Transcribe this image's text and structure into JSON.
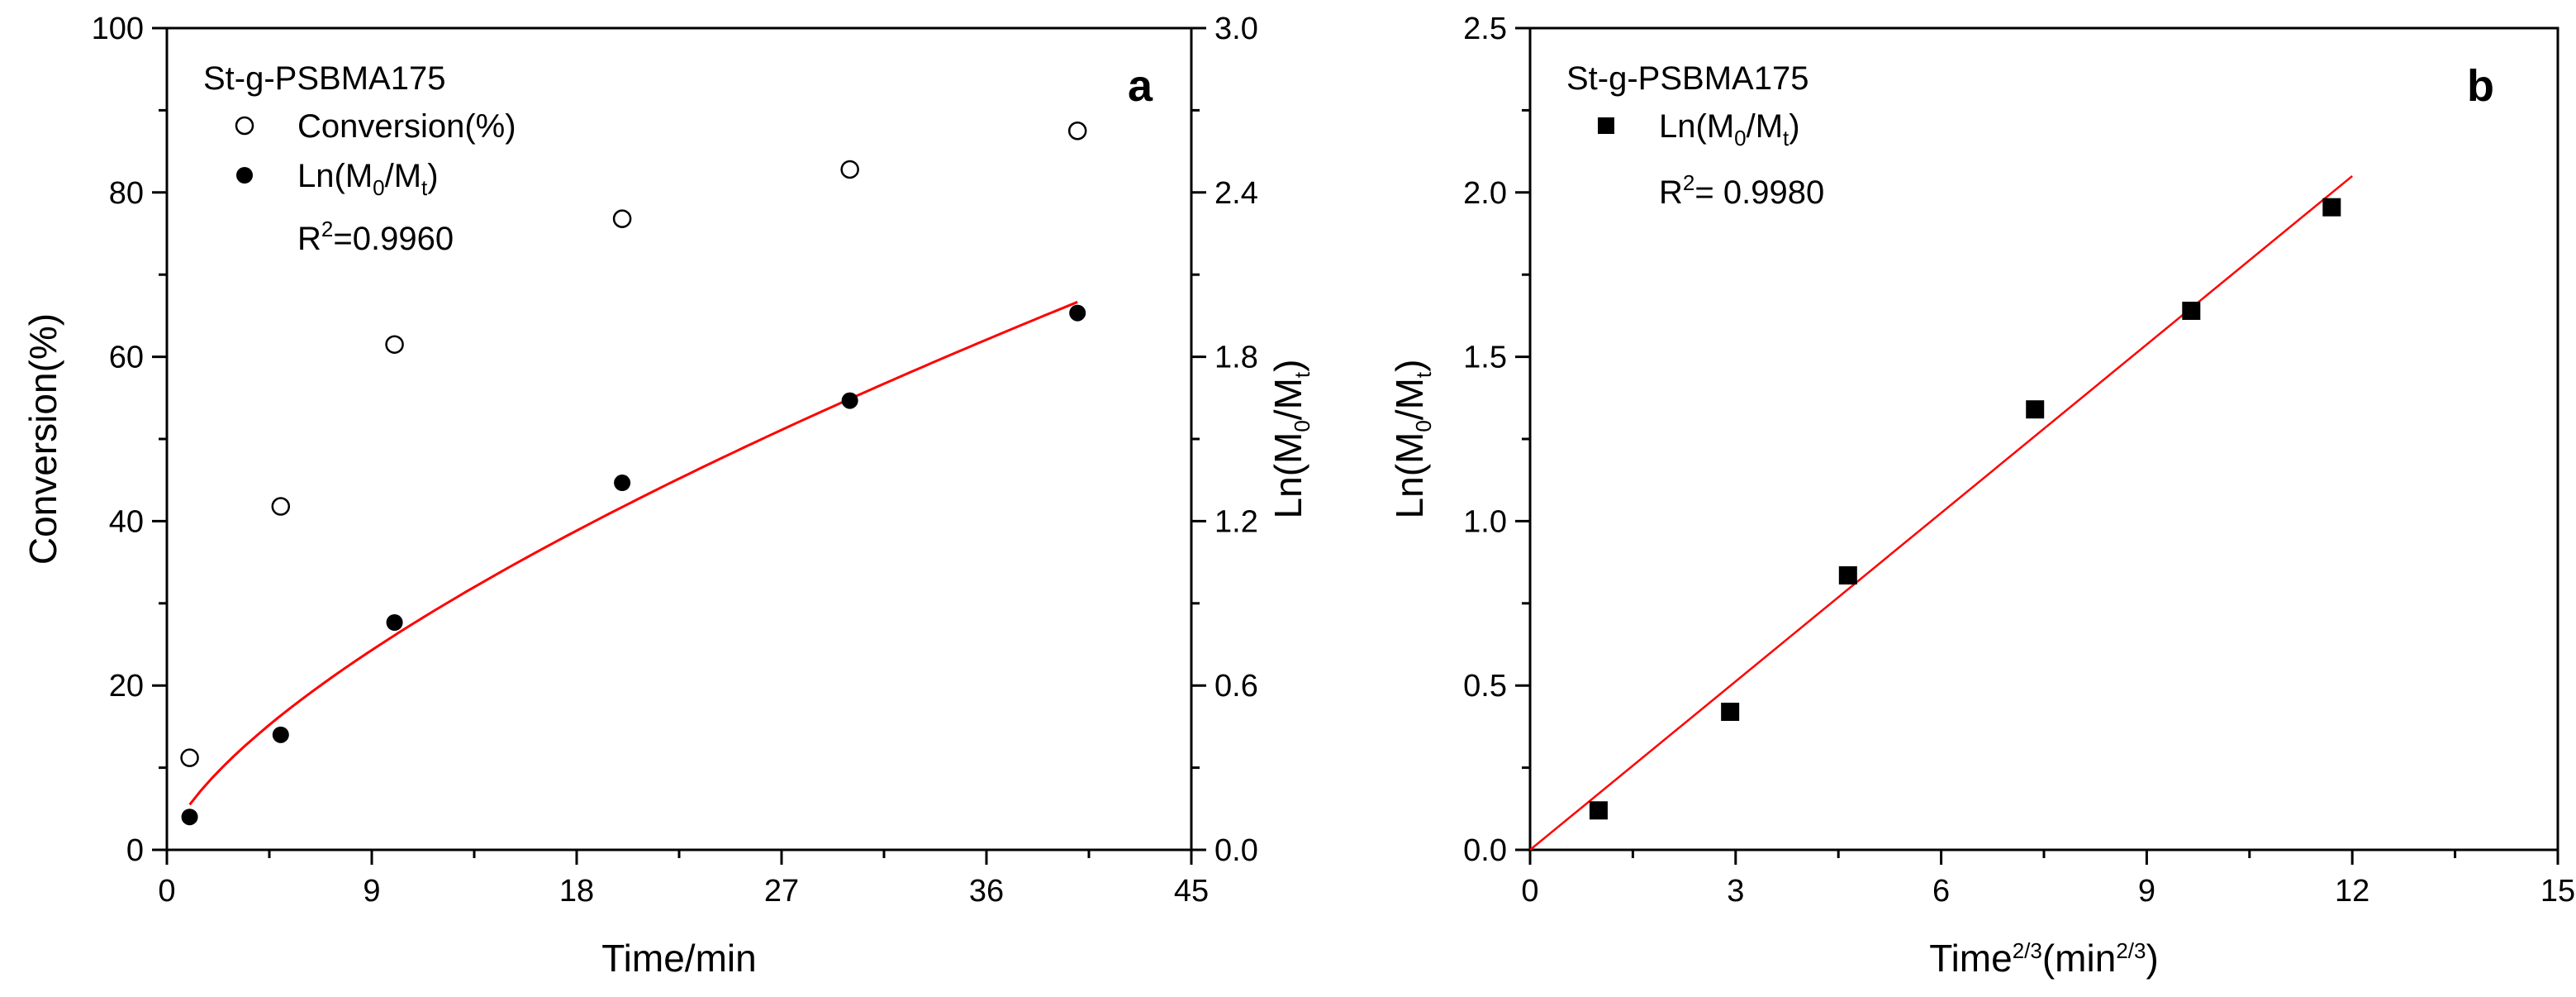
{
  "chart_data": [
    {
      "panel": "a",
      "type": "scatter",
      "legend_title": "St-g-PSBMA175",
      "legend_position": "top-left",
      "x": [
        1,
        5,
        10,
        20,
        30,
        40
      ],
      "xlabel": "Time/min",
      "xlim": [
        0,
        45
      ],
      "xticks": [
        0,
        9,
        18,
        27,
        36,
        45
      ],
      "ylabel_left": "Conversion(%)",
      "ylim_left": [
        0,
        100
      ],
      "yticks_left": [
        0,
        20,
        40,
        60,
        80,
        100
      ],
      "ylabel_right": {
        "base": "Ln(M",
        "sub1": "0",
        "mid": "/M",
        "sub2": "t",
        "end": ")"
      },
      "ylim_right": [
        0,
        3.0
      ],
      "yticks_right": [
        "0.0",
        "0.6",
        "1.2",
        "1.8",
        "2.4",
        "3.0"
      ],
      "series": [
        {
          "name": "Conversion(%)",
          "marker": "open-circle",
          "axis": "left",
          "values": [
            11.2,
            41.8,
            61.5,
            76.8,
            82.8,
            87.5
          ]
        },
        {
          "name": {
            "base": "Ln(M",
            "sub1": "0",
            "mid": "/M",
            "sub2": "t",
            "end": ")"
          },
          "marker": "filled-circle",
          "axis": "right",
          "values": [
            0.12,
            0.42,
            0.83,
            1.34,
            1.64,
            1.96
          ]
        }
      ],
      "fit": {
        "type": "power",
        "color": "#ff0000",
        "x_range": [
          1,
          40
        ],
        "y_start": 0.165,
        "y_end": 2.0,
        "r2_label": "0.9960"
      }
    },
    {
      "panel": "b",
      "type": "scatter",
      "legend_title": "St-g-PSBMA175",
      "legend_position": "top-left",
      "x": [
        1.0,
        2.92,
        4.64,
        7.37,
        9.65,
        11.7
      ],
      "xlabel": {
        "base": "Time",
        "sup": "2/3",
        "mid": "(min",
        "sup2": "2/3",
        "end": ")"
      },
      "xlim": [
        0,
        15
      ],
      "xticks": [
        0,
        3,
        6,
        9,
        12,
        15
      ],
      "ylabel": {
        "base": "Ln(M",
        "sub1": "0",
        "mid": "/M",
        "sub2": "t",
        "end": ")"
      },
      "ylim": [
        0,
        2.5
      ],
      "yticks": [
        "0.0",
        "0.5",
        "1.0",
        "1.5",
        "2.0",
        "2.5"
      ],
      "series": [
        {
          "name": {
            "base": "Ln(M",
            "sub1": "0",
            "mid": "/M",
            "sub2": "t",
            "end": ")"
          },
          "marker": "filled-square",
          "values": [
            0.12,
            0.42,
            0.835,
            1.34,
            1.64,
            1.955
          ]
        }
      ],
      "fit": {
        "type": "linear",
        "color": "#ff0000",
        "x_range": [
          0,
          12
        ],
        "y_start": 0.0,
        "y_end": 2.05,
        "r2_label": "0.9980"
      }
    }
  ]
}
